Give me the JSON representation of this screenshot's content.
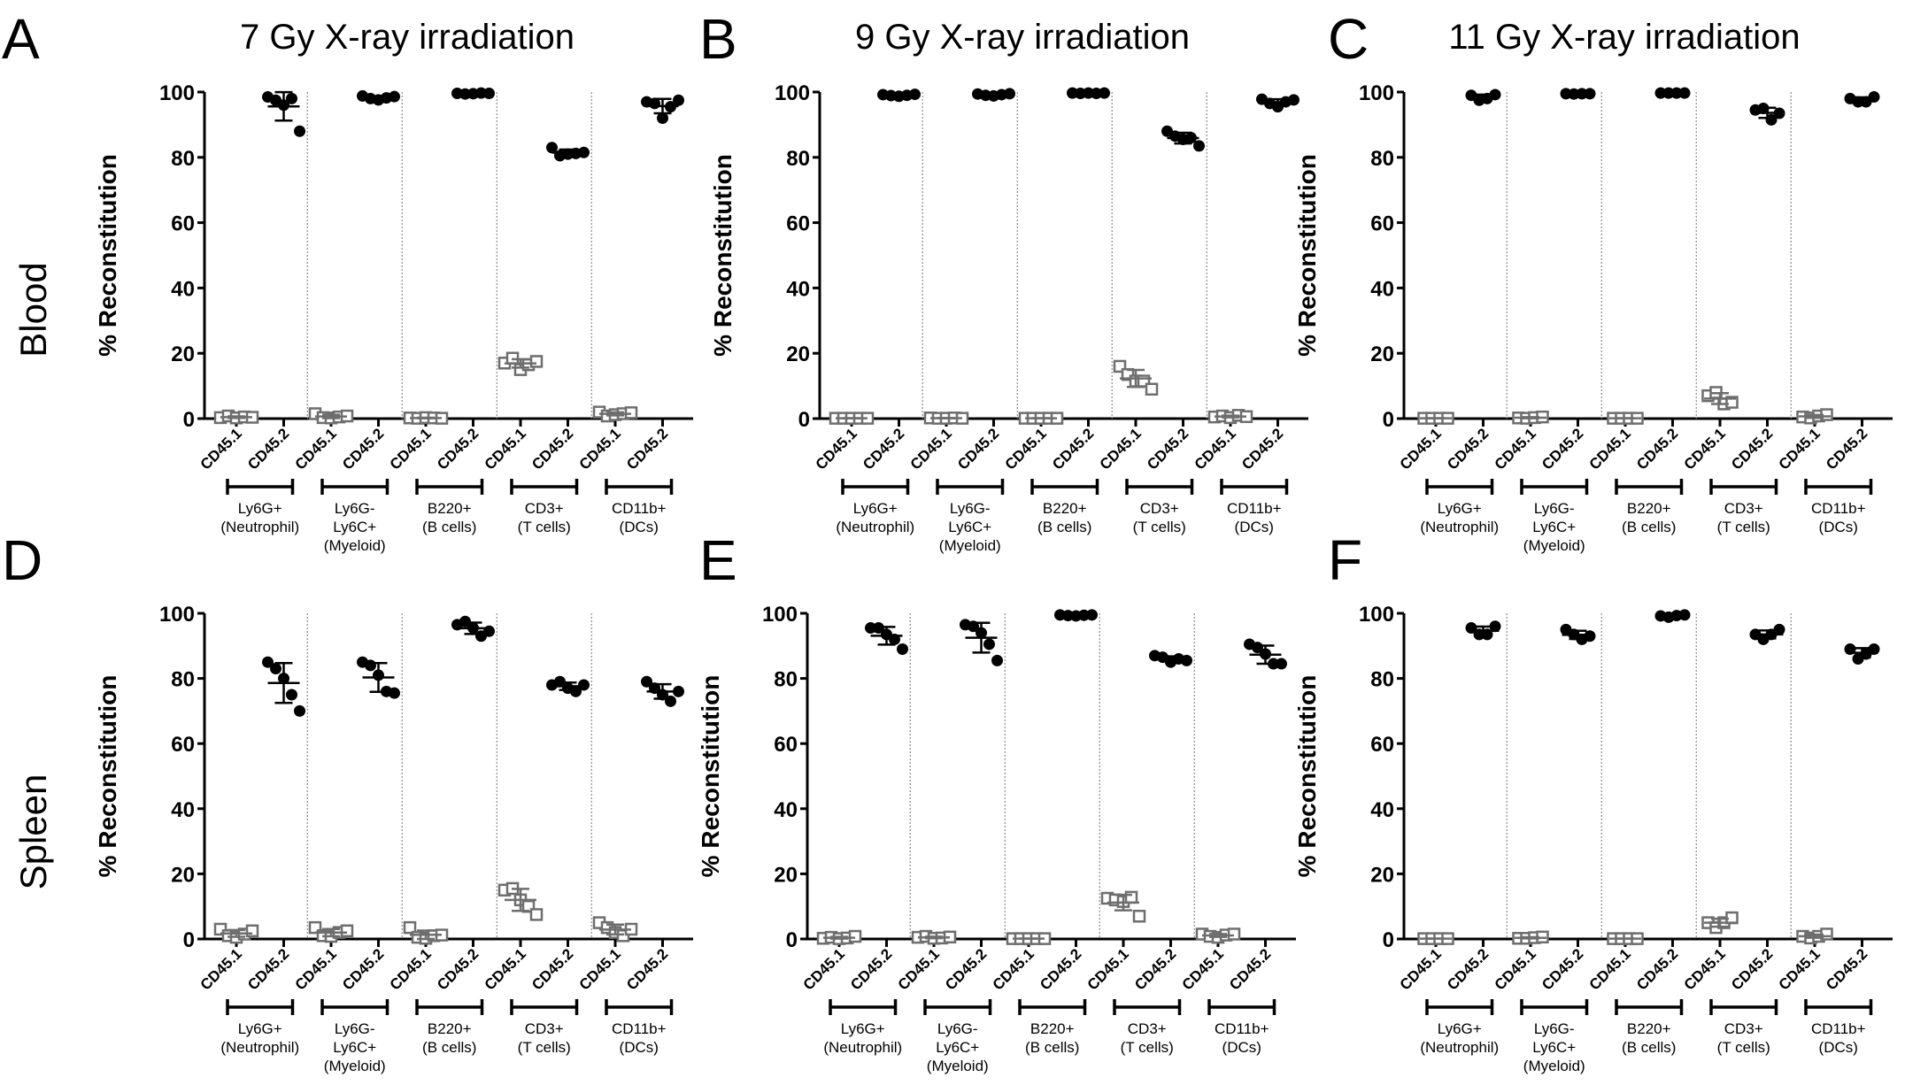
{
  "figure": {
    "row_labels": [
      "Blood",
      "Spleen"
    ],
    "ylabel": "% Reconstitution",
    "category_labels": [
      "CD45.1",
      "CD45.2"
    ],
    "groups": [
      [
        "Ly6G+",
        "(Neutrophil)"
      ],
      [
        "Ly6G-",
        "Ly6C+",
        "(Myeloid)"
      ],
      [
        "B220+",
        "(B cells)"
      ],
      [
        "CD3+",
        "(T cells)"
      ],
      [
        "CD11b+",
        "(DCs)"
      ]
    ],
    "colors": {
      "cd45_1_marker": "#6e6e6e",
      "cd45_2_marker": "#000000",
      "axis": "#000000",
      "divider": "#8a8a8a"
    }
  },
  "chart_data": [
    {
      "panel": "A",
      "title": "7 Gy X-ray irradiation",
      "tissue": "Blood",
      "type": "scatter",
      "ylabel": "% Reconstitution",
      "ylim": [
        0,
        100
      ],
      "yticks": [
        0,
        20,
        40,
        60,
        80,
        100
      ],
      "groups": [
        {
          "name": "Ly6G+ (Neutrophil)",
          "cd45_1": [
            0.3,
            0.8,
            0.2,
            0.5,
            0.4
          ],
          "cd45_2": [
            98.5,
            97.5,
            96,
            98,
            88
          ]
        },
        {
          "name": "Ly6G- Ly6C+ (Myeloid)",
          "cd45_1": [
            1.5,
            0.3,
            0.2,
            0.5,
            0.8
          ],
          "cd45_2": [
            98.8,
            98,
            97.6,
            98.2,
            98.6
          ]
        },
        {
          "name": "B220+ (B cells)",
          "cd45_1": [
            0.2,
            0.1,
            0.3,
            0.2,
            0.1
          ],
          "cd45_2": [
            99.6,
            99.4,
            99.5,
            99.7,
            99.6
          ]
        },
        {
          "name": "CD3+ (T cells)",
          "cd45_1": [
            17,
            18.5,
            15,
            16.5,
            17.5
          ],
          "cd45_2": [
            83,
            80.5,
            81,
            81.2,
            81.5
          ]
        },
        {
          "name": "CD11b+ (DCs)",
          "cd45_1": [
            2,
            0.8,
            1.2,
            1.5,
            1.8
          ],
          "cd45_2": [
            97,
            96.5,
            92,
            95.5,
            97.5
          ]
        }
      ]
    },
    {
      "panel": "B",
      "title": "9 Gy X-ray irradiation",
      "tissue": "Blood",
      "type": "scatter",
      "ylabel": "% Reconstitution",
      "ylim": [
        0,
        100
      ],
      "yticks": [
        0,
        20,
        40,
        60,
        80,
        100
      ],
      "groups": [
        {
          "name": "Ly6G+ (Neutrophil)",
          "cd45_1": [
            0.1,
            0.1,
            0.1,
            0.1,
            0.1
          ],
          "cd45_2": [
            99.2,
            98.9,
            98.7,
            99.0,
            99.3
          ]
        },
        {
          "name": "Ly6G- Ly6C+ (Myeloid)",
          "cd45_1": [
            0.2,
            0.1,
            0.1,
            0.2,
            0.1
          ],
          "cd45_2": [
            99.4,
            99.0,
            98.8,
            99.2,
            99.5
          ]
        },
        {
          "name": "B220+ (B cells)",
          "cd45_1": [
            0.1,
            0.1,
            0.1,
            0.1,
            0.1
          ],
          "cd45_2": [
            99.7,
            99.6,
            99.7,
            99.6,
            99.7
          ]
        },
        {
          "name": "CD3+ (T cells)",
          "cd45_1": [
            16,
            13.5,
            11.5,
            11.5,
            9
          ],
          "cd45_2": [
            88,
            86.5,
            85.5,
            86,
            83.5
          ]
        },
        {
          "name": "CD11b+ (DCs)",
          "cd45_1": [
            0.5,
            0.8,
            0.3,
            1.0,
            0.6
          ],
          "cd45_2": [
            97.8,
            96.5,
            95.5,
            97,
            97.6
          ]
        }
      ]
    },
    {
      "panel": "C",
      "title": "11 Gy X-ray irradiation",
      "tissue": "Blood",
      "type": "scatter",
      "ylabel": "% Reconstitution",
      "ylim": [
        0,
        100
      ],
      "yticks": [
        0,
        20,
        40,
        60,
        80,
        100
      ],
      "groups": [
        {
          "name": "Ly6G+ (Neutrophil)",
          "cd45_1": [
            0.1,
            0.1,
            0.1,
            0.1
          ],
          "cd45_2": [
            99.0,
            97.5,
            98.0,
            99.2
          ]
        },
        {
          "name": "Ly6G- Ly6C+ (Myeloid)",
          "cd45_1": [
            0.2,
            0.1,
            0.3,
            0.5
          ],
          "cd45_2": [
            99.5,
            99.4,
            99.5,
            99.5
          ]
        },
        {
          "name": "B220+ (B cells)",
          "cd45_1": [
            0.1,
            0.1,
            0.1,
            0.1
          ],
          "cd45_2": [
            99.7,
            99.7,
            99.7,
            99.7
          ]
        },
        {
          "name": "CD3+ (T cells)",
          "cd45_1": [
            7,
            8,
            4.5,
            5
          ],
          "cd45_2": [
            94.5,
            95,
            91.5,
            93.5
          ]
        },
        {
          "name": "CD11b+ (DCs)",
          "cd45_1": [
            0.5,
            0.2,
            0.8,
            1.2
          ],
          "cd45_2": [
            98,
            97,
            97,
            98.5
          ]
        }
      ]
    },
    {
      "panel": "D",
      "title": "",
      "tissue": "Spleen",
      "type": "scatter",
      "ylabel": "% Reconstitution",
      "ylim": [
        0,
        100
      ],
      "yticks": [
        0,
        20,
        40,
        60,
        80,
        100
      ],
      "groups": [
        {
          "name": "Ly6G+ (Neutrophil)",
          "cd45_1": [
            3,
            1,
            0.5,
            1.5,
            2.5
          ],
          "cd45_2": [
            85,
            83,
            80,
            75,
            70
          ]
        },
        {
          "name": "Ly6G- Ly6C+ (Myeloid)",
          "cd45_1": [
            3.5,
            1,
            0.8,
            2,
            2.5
          ],
          "cd45_2": [
            85,
            84,
            81,
            76,
            75.5
          ]
        },
        {
          "name": "B220+ (B cells)",
          "cd45_1": [
            3.5,
            0.5,
            0.2,
            1,
            1.2
          ],
          "cd45_2": [
            96.5,
            97.5,
            95.5,
            93,
            94.5
          ]
        },
        {
          "name": "CD3+ (T cells)",
          "cd45_1": [
            15,
            15.5,
            12,
            10,
            7.5
          ],
          "cd45_2": [
            78,
            79,
            77,
            76,
            78
          ]
        },
        {
          "name": "CD11b+ (DCs)",
          "cd45_1": [
            5,
            3.5,
            2,
            1,
            3
          ],
          "cd45_2": [
            79,
            77,
            75,
            73,
            76
          ]
        }
      ]
    },
    {
      "panel": "E",
      "title": "",
      "tissue": "Spleen",
      "type": "scatter",
      "ylabel": "% Reconstitution",
      "ylim": [
        0,
        100
      ],
      "yticks": [
        0,
        20,
        40,
        60,
        80,
        100
      ],
      "groups": [
        {
          "name": "Ly6G+ (Neutrophil)",
          "cd45_1": [
            0.2,
            0.5,
            0.1,
            0.3,
            0.8
          ],
          "cd45_2": [
            95.5,
            95.5,
            93.5,
            92,
            89
          ]
        },
        {
          "name": "Ly6G- Ly6C+ (Myeloid)",
          "cd45_1": [
            0.5,
            0.8,
            0.2,
            0.3,
            0.6
          ],
          "cd45_2": [
            96.5,
            96,
            94,
            90.5,
            85.5
          ]
        },
        {
          "name": "B220+ (B cells)",
          "cd45_1": [
            0.1,
            0.1,
            0.1,
            0.1,
            0.1
          ],
          "cd45_2": [
            99.5,
            99.3,
            99.2,
            99.4,
            99.5
          ]
        },
        {
          "name": "CD3+ (T cells)",
          "cd45_1": [
            12.5,
            12,
            11.5,
            12.8,
            7
          ],
          "cd45_2": [
            87,
            86.5,
            85,
            86,
            85.5
          ]
        },
        {
          "name": "CD11b+ (DCs)",
          "cd45_1": [
            1.5,
            0.8,
            0.5,
            1.2,
            1.5
          ],
          "cd45_2": [
            90.5,
            89.5,
            87.5,
            84.5,
            84.5
          ]
        }
      ]
    },
    {
      "panel": "F",
      "title": "",
      "tissue": "Spleen",
      "type": "scatter",
      "ylabel": "% Reconstitution",
      "ylim": [
        0,
        100
      ],
      "yticks": [
        0,
        20,
        40,
        60,
        80,
        100
      ],
      "groups": [
        {
          "name": "Ly6G+ (Neutrophil)",
          "cd45_1": [
            0.1,
            0.1,
            0.1,
            0.1
          ],
          "cd45_2": [
            95.5,
            93.5,
            93.5,
            96
          ]
        },
        {
          "name": "Ly6G- Ly6C+ (Myeloid)",
          "cd45_1": [
            0.2,
            0.2,
            0.4,
            0.6
          ],
          "cd45_2": [
            95,
            93.5,
            92,
            93
          ]
        },
        {
          "name": "B220+ (B cells)",
          "cd45_1": [
            0.1,
            0.1,
            0.1,
            0.1
          ],
          "cd45_2": [
            99.2,
            98.8,
            99.3,
            99.5
          ]
        },
        {
          "name": "CD3+ (T cells)",
          "cd45_1": [
            5,
            3.5,
            5,
            6.5
          ],
          "cd45_2": [
            93.5,
            92,
            93.5,
            95
          ]
        },
        {
          "name": "CD11b+ (DCs)",
          "cd45_1": [
            0.8,
            0.3,
            0.8,
            1.5
          ],
          "cd45_2": [
            89,
            86,
            87.5,
            89
          ]
        }
      ]
    }
  ]
}
